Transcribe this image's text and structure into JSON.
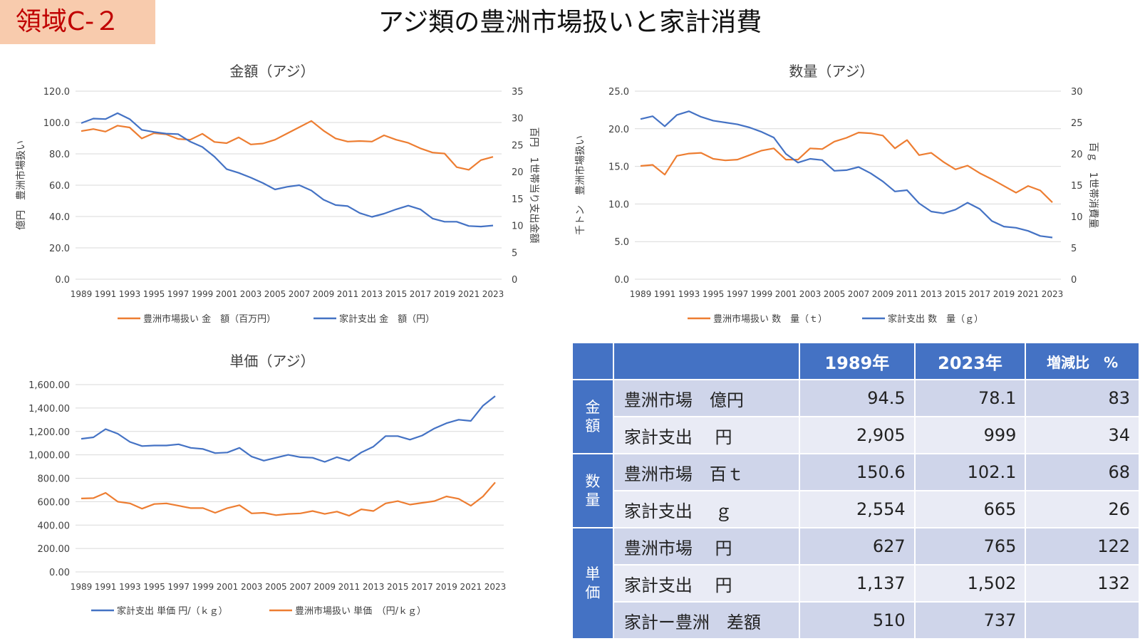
{
  "page": {
    "badge": "領域C-２",
    "title": "アジ類の豊洲市場扱いと家計消費"
  },
  "colors": {
    "orange": "#ed7d31",
    "blue": "#4472c4"
  },
  "chart_data": [
    {
      "type": "line",
      "title": "金額（アジ）",
      "x": [
        "1989",
        "1990",
        "1991",
        "1992",
        "1993",
        "1994",
        "1995",
        "1996",
        "1997",
        "1998",
        "1999",
        "2000",
        "2001",
        "2002",
        "2003",
        "2004",
        "2005",
        "2006",
        "2007",
        "2008",
        "2009",
        "2010",
        "2011",
        "2012",
        "2013",
        "2014",
        "2015",
        "2016",
        "2017",
        "2018",
        "2019",
        "2020",
        "2021",
        "2022",
        "2023"
      ],
      "x_tick_labels": [
        "1989",
        "1991",
        "1993",
        "1995",
        "1997",
        "1999",
        "2001",
        "2003",
        "2005",
        "2007",
        "2009",
        "2011",
        "2013",
        "2015",
        "2017",
        "2019",
        "2021",
        "2023"
      ],
      "y_left": {
        "label": "億円　豊洲市場扱い",
        "lim": [
          0,
          120
        ],
        "ticks": [
          "0.0",
          "20.0",
          "40.0",
          "60.0",
          "80.0",
          "100.0",
          "120.0"
        ]
      },
      "y_right": {
        "label": "百円　1世帯当り支出金額",
        "lim": [
          0,
          35
        ],
        "ticks": [
          "0",
          "5",
          "10",
          "15",
          "20",
          "25",
          "30",
          "35"
        ]
      },
      "series": [
        {
          "name": "豊洲市場扱い 金　額（百万円）",
          "axis": "left",
          "color": "#ed7d31",
          "values": [
            94.5,
            95.8,
            94.2,
            98.0,
            96.8,
            89.8,
            93.2,
            92.5,
            89.5,
            89.0,
            92.8,
            87.6,
            86.8,
            90.5,
            86.0,
            86.6,
            89.0,
            93.0,
            97.0,
            101.0,
            94.8,
            89.8,
            87.8,
            88.2,
            87.8,
            91.8,
            89.0,
            87.0,
            83.5,
            80.8,
            80.2,
            71.5,
            69.8,
            76.0,
            78.1
          ]
        },
        {
          "name": "家計支出 金　額（円）",
          "axis": "right",
          "color": "#4472c4",
          "values": [
            29.05,
            29.9,
            29.8,
            30.9,
            29.8,
            27.8,
            27.4,
            27.1,
            27.0,
            25.6,
            24.6,
            22.8,
            20.5,
            19.8,
            18.9,
            17.9,
            16.7,
            17.2,
            17.5,
            16.5,
            14.8,
            13.8,
            13.6,
            12.3,
            11.6,
            12.2,
            13.0,
            13.7,
            13.0,
            11.3,
            10.7,
            10.7,
            9.9,
            9.8,
            9.99
          ]
        }
      ]
    },
    {
      "type": "line",
      "title": "数量（アジ）",
      "x": [
        "1989",
        "1990",
        "1991",
        "1992",
        "1993",
        "1994",
        "1995",
        "1996",
        "1997",
        "1998",
        "1999",
        "2000",
        "2001",
        "2002",
        "2003",
        "2004",
        "2005",
        "2006",
        "2007",
        "2008",
        "2009",
        "2010",
        "2011",
        "2012",
        "2013",
        "2014",
        "2015",
        "2016",
        "2017",
        "2018",
        "2019",
        "2020",
        "2021",
        "2022",
        "2023"
      ],
      "x_tick_labels": [
        "1989",
        "1991",
        "1993",
        "1995",
        "1997",
        "1999",
        "2001",
        "2003",
        "2005",
        "2007",
        "2009",
        "2011",
        "2013",
        "2015",
        "2017",
        "2019",
        "2021",
        "2023"
      ],
      "y_left": {
        "label": "千トン　豊洲市場扱い",
        "lim": [
          0,
          25
        ],
        "ticks": [
          "0.0",
          "5.0",
          "10.0",
          "15.0",
          "20.0",
          "25.0"
        ]
      },
      "y_right": {
        "label": "百ｇ　1世帯消費量",
        "lim": [
          0,
          30
        ],
        "ticks": [
          "0",
          "5",
          "10",
          "15",
          "20",
          "25",
          "30"
        ]
      },
      "series": [
        {
          "name": "豊洲市場扱い 数　量（ｔ）",
          "axis": "left",
          "color": "#ed7d31",
          "values": [
            15.06,
            15.2,
            13.9,
            16.4,
            16.7,
            16.8,
            16.0,
            15.8,
            15.9,
            16.5,
            17.1,
            17.4,
            15.9,
            15.9,
            17.4,
            17.3,
            18.3,
            18.8,
            19.5,
            19.4,
            19.1,
            17.4,
            18.5,
            16.5,
            16.8,
            15.6,
            14.6,
            15.1,
            14.1,
            13.3,
            12.4,
            11.5,
            12.4,
            11.8,
            10.21
          ]
        },
        {
          "name": "家計支出 数　量（ｇ）",
          "axis": "right",
          "color": "#4472c4",
          "values": [
            25.54,
            26.0,
            24.4,
            26.2,
            26.8,
            25.9,
            25.3,
            25.0,
            24.7,
            24.2,
            23.5,
            22.6,
            20.0,
            18.6,
            19.2,
            19.0,
            17.3,
            17.4,
            17.9,
            16.9,
            15.6,
            14.0,
            14.2,
            12.1,
            10.8,
            10.5,
            11.1,
            12.2,
            11.2,
            9.3,
            8.4,
            8.2,
            7.7,
            6.9,
            6.65
          ]
        }
      ]
    },
    {
      "type": "line",
      "title": "単価（アジ）",
      "x": [
        "1989",
        "1990",
        "1991",
        "1992",
        "1993",
        "1994",
        "1995",
        "1996",
        "1997",
        "1998",
        "1999",
        "2000",
        "2001",
        "2002",
        "2003",
        "2004",
        "2005",
        "2006",
        "2007",
        "2008",
        "2009",
        "2010",
        "2011",
        "2012",
        "2013",
        "2014",
        "2015",
        "2016",
        "2017",
        "2018",
        "2019",
        "2020",
        "2021",
        "2022",
        "2023"
      ],
      "x_tick_labels": [
        "1989",
        "1991",
        "1993",
        "1995",
        "1997",
        "1999",
        "2001",
        "2003",
        "2005",
        "2007",
        "2009",
        "2011",
        "2013",
        "2015",
        "2017",
        "2019",
        "2021",
        "2023"
      ],
      "y_left": {
        "label": "",
        "lim": [
          0,
          1600
        ],
        "ticks": [
          "0.00",
          "200.00",
          "400.00",
          "600.00",
          "800.00",
          "1,000.00",
          "1,200.00",
          "1,400.00",
          "1,600.00"
        ]
      },
      "series": [
        {
          "name": "家計支出 単価 円/（ｋｇ）",
          "axis": "left",
          "color": "#4472c4",
          "values": [
            1137,
            1150,
            1220,
            1180,
            1110,
            1075,
            1080,
            1080,
            1090,
            1060,
            1050,
            1015,
            1020,
            1060,
            985,
            950,
            975,
            1000,
            980,
            975,
            940,
            980,
            950,
            1020,
            1070,
            1160,
            1160,
            1130,
            1165,
            1225,
            1270,
            1300,
            1290,
            1420,
            1502
          ]
        },
        {
          "name": "豊洲市場扱い 単価　（円/ｋｇ）",
          "axis": "left",
          "color": "#ed7d31",
          "values": [
            627,
            630,
            675,
            600,
            585,
            540,
            580,
            585,
            565,
            545,
            545,
            505,
            545,
            570,
            500,
            505,
            485,
            495,
            500,
            520,
            495,
            515,
            480,
            535,
            520,
            585,
            605,
            575,
            590,
            605,
            645,
            625,
            565,
            645,
            765
          ]
        }
      ]
    },
    {
      "type": "table",
      "columns": [
        "",
        "",
        "1989年",
        "2023年",
        "増減比　%"
      ],
      "groups": [
        {
          "label": "金額",
          "rows": [
            {
              "label": "豊洲市場　億円",
              "v1989": "94.5",
              "v2023": "78.1",
              "ratio": "83"
            },
            {
              "label": "家計支出　 円",
              "v1989": "2,905",
              "v2023": "999",
              "ratio": "34"
            }
          ]
        },
        {
          "label": "数量",
          "rows": [
            {
              "label": "豊洲市場　百ｔ",
              "v1989": "150.6",
              "v2023": "102.1",
              "ratio": "68"
            },
            {
              "label": "家計支出　 ｇ",
              "v1989": "2,554",
              "v2023": "665",
              "ratio": "26"
            }
          ]
        },
        {
          "label": "単価",
          "rows": [
            {
              "label": "豊洲市場　 円",
              "v1989": "627",
              "v2023": "765",
              "ratio": "122"
            },
            {
              "label": "家計支出　 円",
              "v1989": "1,137",
              "v2023": "1,502",
              "ratio": "132"
            },
            {
              "label": "家計ー豊洲　差額",
              "v1989": "510",
              "v2023": "737",
              "ratio": ""
            }
          ]
        }
      ]
    }
  ]
}
